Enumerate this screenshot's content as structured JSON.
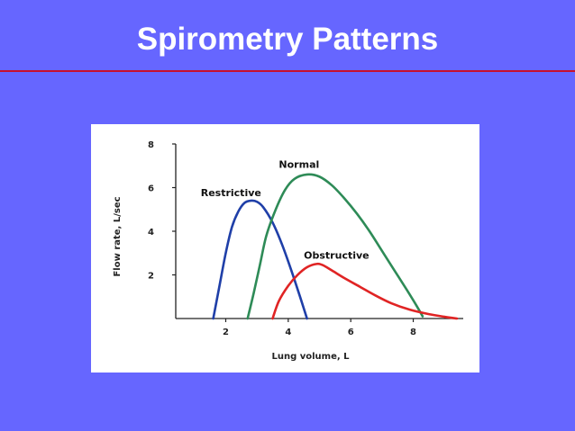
{
  "slide": {
    "title": "Spirometry Patterns"
  },
  "colors": {
    "background": "#6666ff",
    "rule": "#c8102e",
    "normal": "#2e8b57",
    "restrictive": "#1f3fa8",
    "obstructive": "#e02424"
  },
  "chart_data": {
    "type": "line",
    "title": "",
    "xlabel": "Lung volume, L",
    "ylabel": "Flow rate, L/sec",
    "xlim": [
      0.4,
      9.6
    ],
    "ylim": [
      0,
      8
    ],
    "xticks": [
      2,
      4,
      6,
      8
    ],
    "yticks": [
      2,
      4,
      6,
      8
    ],
    "grid": false,
    "legend": "inline labels",
    "series": [
      {
        "name": "Restrictive",
        "color_key": "restrictive",
        "x": [
          1.6,
          1.8,
          2.0,
          2.2,
          2.4,
          2.6,
          2.8,
          3.0,
          3.2,
          3.5,
          3.8,
          4.1,
          4.4,
          4.6
        ],
        "y": [
          0,
          1.5,
          3.0,
          4.2,
          4.9,
          5.3,
          5.4,
          5.35,
          5.1,
          4.4,
          3.4,
          2.2,
          0.9,
          0
        ]
      },
      {
        "name": "Normal",
        "color_key": "normal",
        "x": [
          2.7,
          2.9,
          3.1,
          3.3,
          3.6,
          3.9,
          4.2,
          4.6,
          5.0,
          5.4,
          5.8,
          6.2,
          6.6,
          7.0,
          7.4,
          7.8,
          8.1,
          8.3
        ],
        "y": [
          0,
          1.2,
          2.5,
          3.8,
          5.0,
          5.9,
          6.4,
          6.6,
          6.5,
          6.1,
          5.5,
          4.8,
          4.0,
          3.1,
          2.2,
          1.3,
          0.6,
          0.1
        ]
      },
      {
        "name": "Obstructive",
        "color_key": "obstructive",
        "x": [
          3.5,
          3.7,
          4.0,
          4.3,
          4.6,
          4.9,
          5.1,
          5.4,
          5.8,
          6.3,
          6.8,
          7.3,
          7.9,
          8.5,
          9.0,
          9.4
        ],
        "y": [
          0,
          0.8,
          1.5,
          2.0,
          2.35,
          2.5,
          2.45,
          2.2,
          1.85,
          1.45,
          1.05,
          0.7,
          0.4,
          0.2,
          0.08,
          0
        ]
      }
    ],
    "labels": [
      {
        "text": "Restrictive",
        "x": 1.2,
        "y": 5.6
      },
      {
        "text": "Normal",
        "x": 3.7,
        "y": 6.9
      },
      {
        "text": "Obstructive",
        "x": 4.5,
        "y": 2.75
      }
    ]
  }
}
